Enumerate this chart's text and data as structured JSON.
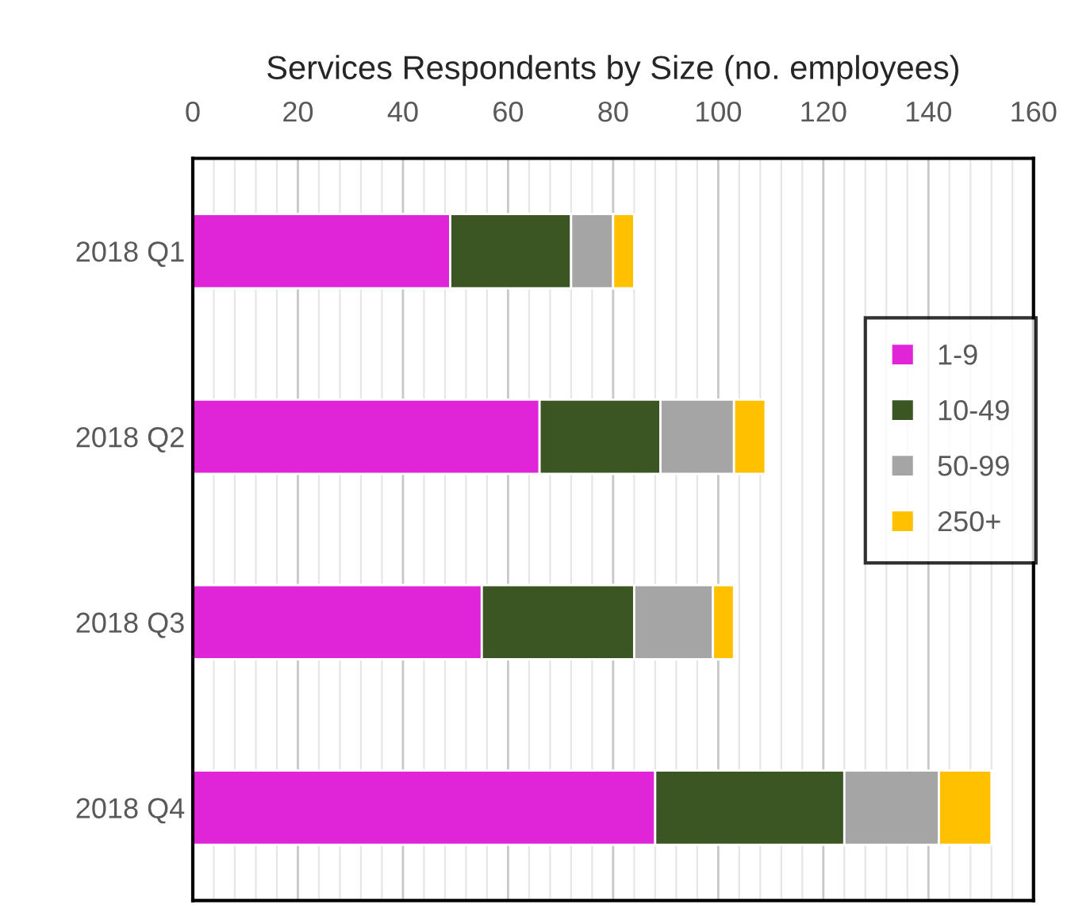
{
  "chart_data": {
    "type": "bar",
    "orientation": "horizontal",
    "stacked": true,
    "title": "Services Respondents by Size (no. employees)",
    "categories": [
      "2018 Q1",
      "2018 Q2",
      "2018 Q3",
      "2018 Q4"
    ],
    "series": [
      {
        "name": "1-9",
        "color": "#e025d8",
        "values": [
          49,
          66,
          55,
          88
        ]
      },
      {
        "name": "10-49",
        "color": "#3b5623",
        "values": [
          23,
          23,
          29,
          36
        ]
      },
      {
        "name": "50-99",
        "color": "#a5a5a5",
        "values": [
          8,
          14,
          15,
          18
        ]
      },
      {
        "name": "250+",
        "color": "#ffc000",
        "values": [
          4,
          6,
          4,
          10
        ]
      }
    ],
    "xlim": [
      0,
      160
    ],
    "xticks": [
      0,
      20,
      40,
      60,
      80,
      100,
      120,
      140,
      160
    ],
    "grid": "x",
    "legend": "right"
  }
}
